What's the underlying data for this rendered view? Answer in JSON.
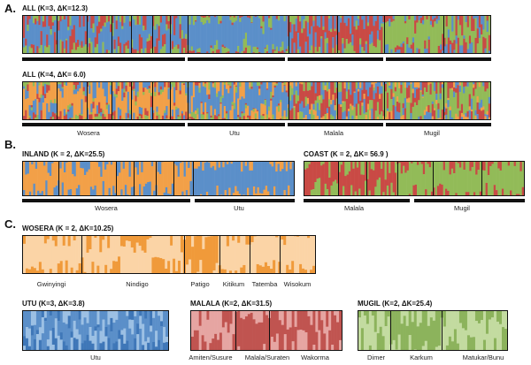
{
  "sections": {
    "a": "A.",
    "b": "B.",
    "c": "C."
  },
  "colors": {
    "blue": "#5b8fc9",
    "red": "#c94a45",
    "green": "#92bb58",
    "orange": "#f2a048",
    "orange_light": "#fbd4a6",
    "orange_dark": "#f09a3a",
    "blue_light": "#9cc0e4",
    "blue_dark": "#3f77b8",
    "red_light": "#e6a5a2",
    "red_dark": "#c05450",
    "green_light": "#c3dba0",
    "green_dark": "#8cb35c"
  },
  "panels": {
    "all_k3": {
      "title": "ALL (K=3, ΔK=12.3)"
    },
    "all_k4": {
      "title": "ALL (K=4, ΔK= 6.0)",
      "groups": [
        "Wosera",
        "Utu",
        "Malala",
        "Mugil"
      ]
    },
    "inland": {
      "title": "INLAND (K = 2, ΔK=25.5)",
      "groups": [
        "Wosera",
        "Utu"
      ]
    },
    "coast": {
      "title": "COAST (K = 2, ΔK= 56.9 )",
      "groups": [
        "Malala",
        "Mugil"
      ]
    },
    "wosera": {
      "title": "WOSERA (K = 2, ΔK=10.25)",
      "groups": [
        "Gwinyingi",
        "Nindigo",
        "Patigo",
        "Kitikum",
        "Tatemba",
        "Wisokum"
      ]
    },
    "utu": {
      "title": "UTU (K=3, ΔK=3.8)",
      "groups": [
        "Utu"
      ]
    },
    "malala": {
      "title": "MALALA (K=2, ΔK=31.5)",
      "groups": [
        "Amiten/Susure",
        "Malala/Suraten",
        "Wakorma"
      ]
    },
    "mugil": {
      "title": "MUGIL (K=2, ΔK=25.4)",
      "groups": [
        "Dimer",
        "Karkum",
        "Matukar/Bunu"
      ]
    }
  }
}
